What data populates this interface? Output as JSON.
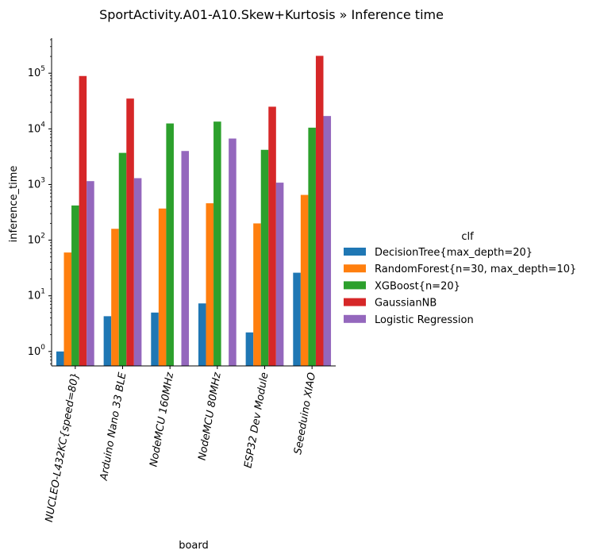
{
  "chart_data": {
    "type": "bar",
    "title": "SportActivity.A01-A10.Skew+Kurtosis » Inference time",
    "xlabel": "board",
    "ylabel": "inference_time",
    "yscale": "log",
    "ylim": [
      0.55,
      400000
    ],
    "yticks": [
      {
        "value": 1,
        "base": "10",
        "exp": "0"
      },
      {
        "value": 10,
        "base": "10",
        "exp": "1"
      },
      {
        "value": 100,
        "base": "10",
        "exp": "2"
      },
      {
        "value": 1000,
        "base": "10",
        "exp": "3"
      },
      {
        "value": 10000,
        "base": "10",
        "exp": "4"
      },
      {
        "value": 100000,
        "base": "10",
        "exp": "5"
      }
    ],
    "categories": [
      "NUCLEO-L432KC{speed=80}",
      "Arduino Nano 33 BLE",
      "NodeMCU 160MHz",
      "NodeMCU 80MHz",
      "ESP32 Dev Module",
      "Seeeduino XIAO"
    ],
    "legend_title": "clf",
    "legend_position": "right",
    "series": [
      {
        "name": "DecisionTree{max_depth=20}",
        "color": "#1f77b4",
        "values": [
          1.0,
          4.3,
          5.0,
          7.3,
          2.2,
          26
        ]
      },
      {
        "name": "RandomForest{n=30, max_depth=10}",
        "color": "#ff7f0e",
        "values": [
          60,
          160,
          370,
          460,
          200,
          650
        ]
      },
      {
        "name": "XGBoost{n=20}",
        "color": "#2ca02c",
        "values": [
          420,
          3700,
          12500,
          13500,
          4200,
          10500
        ]
      },
      {
        "name": "GaussianNB",
        "color": "#d62728",
        "values": [
          89000,
          35000,
          null,
          null,
          25000,
          205000
        ]
      },
      {
        "name": "Logistic Regression",
        "color": "#9467bd",
        "values": [
          1150,
          1300,
          4000,
          6700,
          1080,
          17000
        ]
      }
    ]
  }
}
